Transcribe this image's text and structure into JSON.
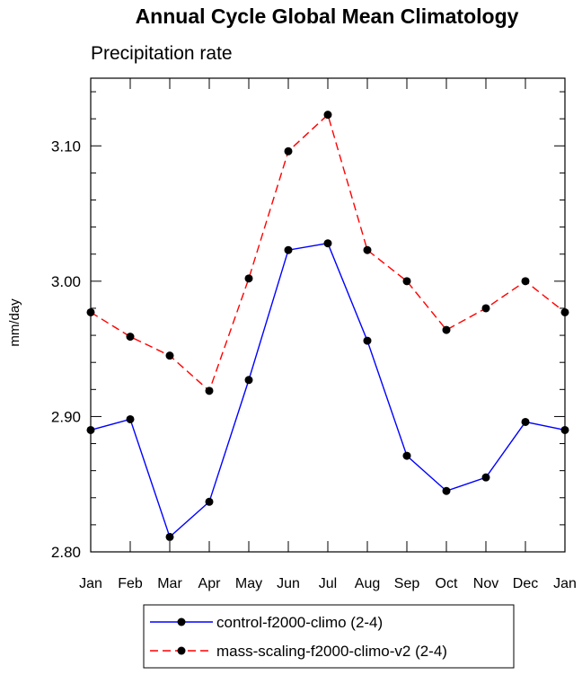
{
  "chart_data": {
    "type": "line",
    "title": "Annual Cycle Global Mean Climatology",
    "subtitle": "Precipitation rate",
    "ylabel": "mm/day",
    "xlabel": "",
    "categories": [
      "Jan",
      "Feb",
      "Mar",
      "Apr",
      "May",
      "Jun",
      "Jul",
      "Aug",
      "Sep",
      "Oct",
      "Nov",
      "Dec",
      "Jan"
    ],
    "ylim": [
      2.8,
      3.15
    ],
    "yticks": [
      2.8,
      2.9,
      3.0,
      3.1
    ],
    "ytick_labels": [
      "2.80",
      "2.90",
      "3.00",
      "3.10"
    ],
    "grid": false,
    "legend_position": "bottom",
    "series": [
      {
        "name": "control-f2000-climo (2-4)",
        "color": "#0000ff",
        "dash": "solid",
        "marker": "filled-circle",
        "values": [
          2.89,
          2.898,
          2.811,
          2.837,
          2.927,
          3.023,
          3.028,
          2.956,
          2.871,
          2.845,
          2.855,
          2.896,
          2.89
        ]
      },
      {
        "name": "mass-scaling-f2000-climo-v2 (2-4)",
        "color": "#ff0000",
        "dash": "dashed",
        "marker": "filled-circle",
        "values": [
          2.977,
          2.959,
          2.945,
          2.919,
          3.002,
          3.096,
          3.123,
          3.023,
          3.0,
          2.964,
          2.98,
          3.0,
          2.977
        ]
      }
    ]
  }
}
